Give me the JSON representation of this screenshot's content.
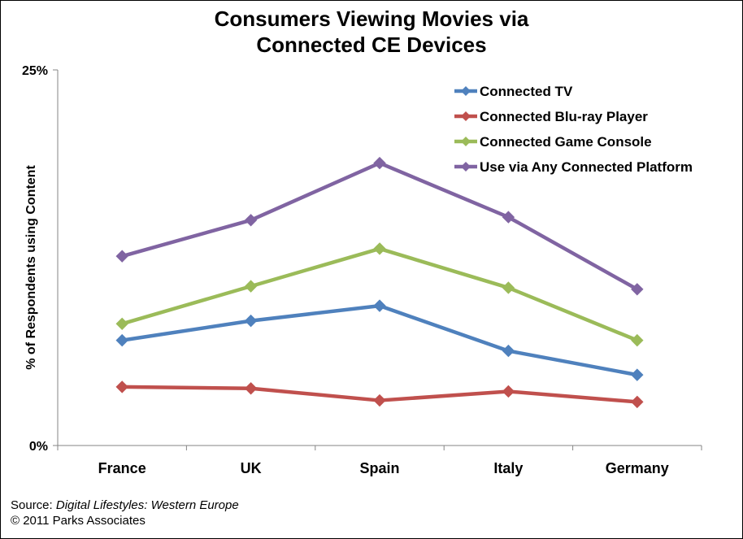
{
  "chart_data": {
    "type": "line",
    "title_lines": [
      "Consumers Viewing Movies via",
      "Connected CE Devices"
    ],
    "ylabel": "% of Respondents using Content",
    "xlabel": "",
    "categories": [
      "France",
      "UK",
      "Spain",
      "Italy",
      "Germany"
    ],
    "ylim": [
      0,
      25
    ],
    "y_ticks": [
      {
        "value": 0,
        "label": "0%"
      },
      {
        "value": 25,
        "label": "25%"
      }
    ],
    "grid": false,
    "legend_position": "top-right",
    "series": [
      {
        "name": "Connected TV",
        "color": "#4F81BD",
        "values": [
          7,
          8.3,
          9.3,
          6.3,
          4.7
        ]
      },
      {
        "name": "Connected Blu-ray Player",
        "color": "#C0504D",
        "values": [
          3.9,
          3.8,
          3.0,
          3.6,
          2.9
        ]
      },
      {
        "name": "Connected Game Console",
        "color": "#9BBB59",
        "values": [
          8.1,
          10.6,
          13.1,
          10.5,
          7.0
        ]
      },
      {
        "name": "Use via Any Connected Platform",
        "color": "#8064A2",
        "values": [
          12.6,
          15.0,
          18.8,
          15.2,
          10.4
        ]
      }
    ]
  },
  "source": {
    "prefix": "Source: ",
    "title": "Digital Lifestyles: Western Europe",
    "copyright": "© 2011 Parks Associates"
  }
}
